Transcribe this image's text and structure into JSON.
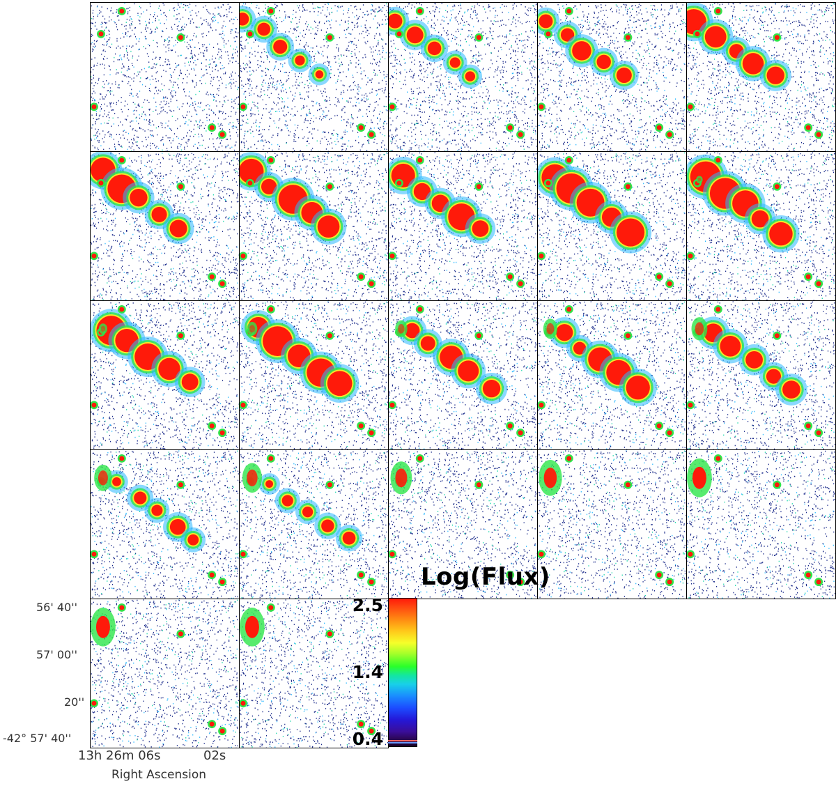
{
  "colorbar": {
    "title": "Log(Flux)",
    "ticks": [
      "2.5",
      "1.4",
      "0.4"
    ],
    "min": 0.4,
    "max": 2.5,
    "colormap": "rainbow (red=high, purple=low)"
  },
  "axes": {
    "dec_ticks": [
      "56' 40''",
      "57' 00''",
      "20''",
      "-42° 57' 40''"
    ],
    "ra_tick_hours": "13h 26m 06s",
    "ra_tick_2": "02s",
    "xlabel": "Right Ascension"
  },
  "panels": {
    "rows": 5,
    "cols": 5,
    "count": 22
  },
  "colors": {
    "background": "#ffffff",
    "noise": "#1a2a8a",
    "low": "#29b8ff",
    "mid": "#2ee64a",
    "high": "#ff1a0a",
    "peak": "#ff0000"
  }
}
